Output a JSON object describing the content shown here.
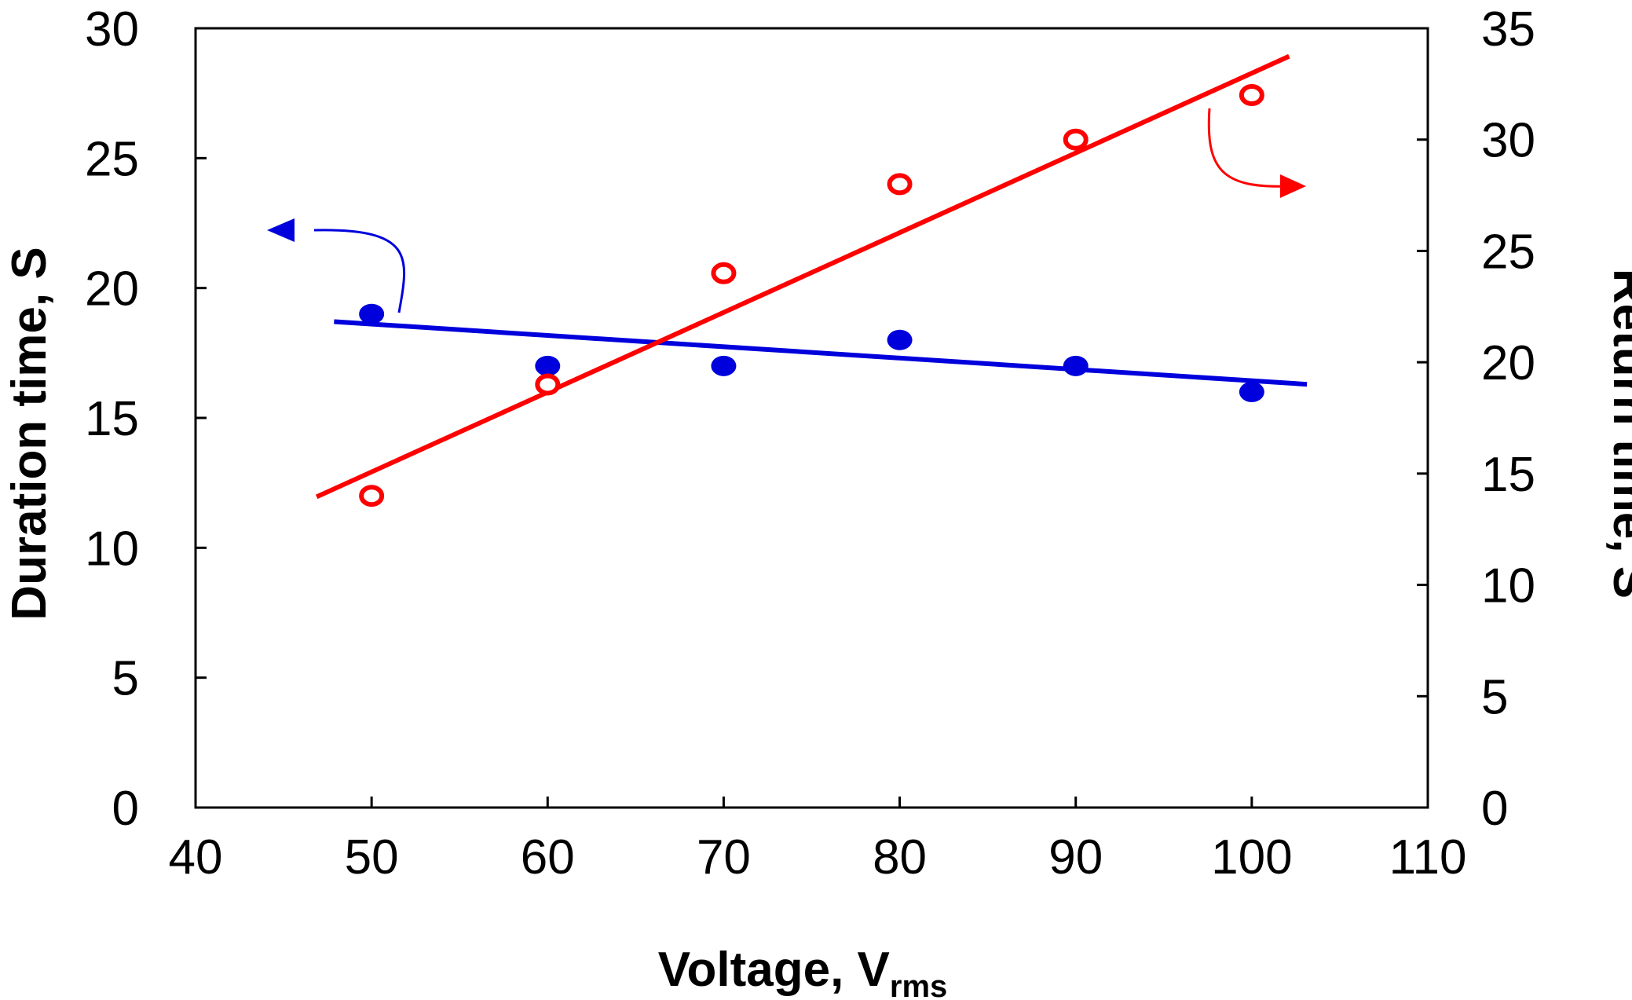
{
  "chart_data": {
    "type": "scatter",
    "x": [
      50,
      60,
      70,
      80,
      90,
      100
    ],
    "xlim": [
      40,
      110
    ],
    "xticks": [
      40,
      50,
      60,
      70,
      80,
      90,
      100,
      110
    ],
    "xlabel": "Voltage, V",
    "xlabel_subscript": "rms",
    "y_left": {
      "label": "Duration time, S",
      "lim": [
        0,
        30
      ],
      "ticks": [
        0,
        5,
        10,
        15,
        20,
        25,
        30
      ]
    },
    "y_right": {
      "label": "Return time, S",
      "lim": [
        0,
        35
      ],
      "ticks": [
        0,
        5,
        10,
        15,
        20,
        25,
        30,
        35
      ]
    },
    "grid": false,
    "series": [
      {
        "name": "Duration time",
        "axis": "left",
        "marker": "filled-circle",
        "color": "#0000DD",
        "values": [
          19,
          17,
          17,
          18,
          17,
          16
        ],
        "fit": {
          "x": [
            48,
            103
          ],
          "y": [
            18.7,
            16.3
          ]
        },
        "arrow_direction": "left"
      },
      {
        "name": "Return time",
        "axis": "right",
        "marker": "open-circle",
        "color": "#FF0000",
        "values": [
          14,
          19,
          24,
          28,
          30,
          32
        ],
        "fit": {
          "x": [
            47,
            102
          ],
          "y": [
            14.0,
            33.7
          ]
        },
        "arrow_direction": "right"
      }
    ]
  }
}
